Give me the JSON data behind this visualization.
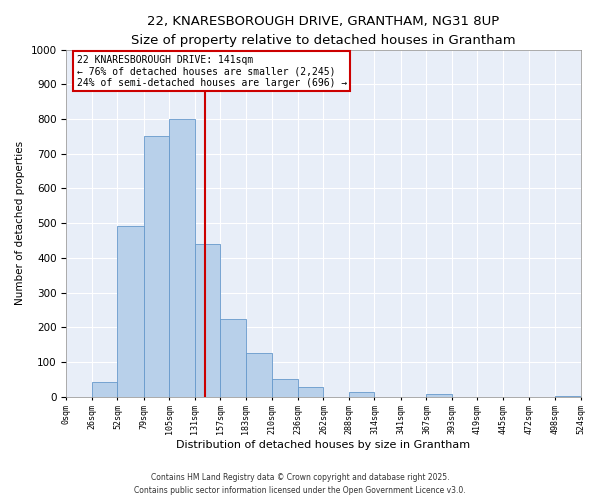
{
  "title_line1": "22, KNARESBOROUGH DRIVE, GRANTHAM, NG31 8UP",
  "title_line2": "Size of property relative to detached houses in Grantham",
  "xlabel": "Distribution of detached houses by size in Grantham",
  "ylabel": "Number of detached properties",
  "bar_edges": [
    0,
    26,
    52,
    79,
    105,
    131,
    157,
    183,
    210,
    236,
    262,
    288,
    314,
    341,
    367,
    393,
    419,
    445,
    472,
    498,
    524
  ],
  "bar_heights": [
    0,
    42,
    492,
    750,
    800,
    440,
    225,
    127,
    52,
    27,
    0,
    15,
    0,
    0,
    8,
    0,
    0,
    0,
    0,
    3
  ],
  "bar_color": "#b8d0ea",
  "bar_edgecolor": "#6699cc",
  "vline_x": 141,
  "vline_color": "#cc0000",
  "annotation_title": "22 KNARESBOROUGH DRIVE: 141sqm",
  "annotation_line2": "← 76% of detached houses are smaller (2,245)",
  "annotation_line3": "24% of semi-detached houses are larger (696) →",
  "annotation_box_edgecolor": "#cc0000",
  "ylim": [
    0,
    1000
  ],
  "tick_labels": [
    "0sqm",
    "26sqm",
    "52sqm",
    "79sqm",
    "105sqm",
    "131sqm",
    "157sqm",
    "183sqm",
    "210sqm",
    "236sqm",
    "262sqm",
    "288sqm",
    "314sqm",
    "341sqm",
    "367sqm",
    "393sqm",
    "419sqm",
    "445sqm",
    "472sqm",
    "498sqm",
    "524sqm"
  ],
  "footnote1": "Contains HM Land Registry data © Crown copyright and database right 2025.",
  "footnote2": "Contains public sector information licensed under the Open Government Licence v3.0.",
  "bg_color": "#ffffff",
  "plot_bg_color": "#e8eef8",
  "grid_color": "#ffffff",
  "title1_fontsize": 9.5,
  "title2_fontsize": 8.0,
  "ylabel_fontsize": 7.5,
  "xlabel_fontsize": 8.0,
  "tick_fontsize": 6.0,
  "ytick_fontsize": 7.5,
  "footnote_fontsize": 5.5
}
